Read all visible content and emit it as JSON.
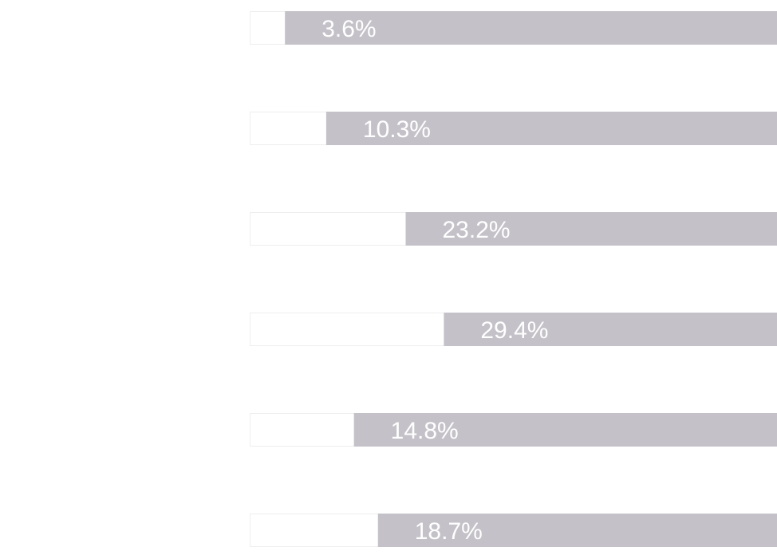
{
  "chart_data": {
    "type": "bar",
    "orientation": "horizontal",
    "categories": [
      "",
      "",
      "",
      "",
      "",
      ""
    ],
    "values": [
      3.6,
      10.3,
      23.2,
      29.4,
      14.8,
      18.7
    ],
    "labels": [
      "3.6%",
      "10.3%",
      "23.2%",
      "29.4%",
      "14.8%",
      "18.7%"
    ],
    "title": "",
    "xlabel": "",
    "ylabel": "",
    "grid": false,
    "colors": {
      "bar_fill": "#c4c1c8",
      "track_fill": "#ffffff",
      "track_border": "#eeeeee",
      "label_text": "#ffffff"
    }
  }
}
